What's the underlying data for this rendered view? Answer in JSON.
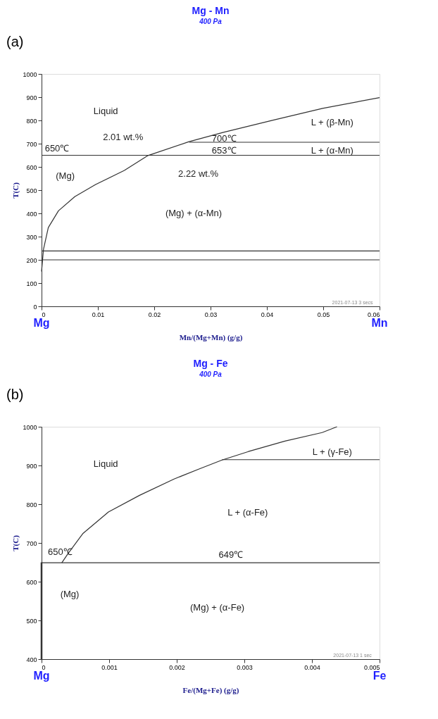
{
  "chart_data": [
    {
      "type": "line",
      "title": "Mg - Mn",
      "subtitle": "400 Pa",
      "xlabel": "Mn/(Mg+Mn) (g/g)",
      "ylabel": "T(C)",
      "x": [
        0.0,
        0.00035,
        0.0012,
        0.003,
        0.0059,
        0.0096,
        0.0147,
        0.0189,
        0.0261,
        0.0323,
        0.0411,
        0.0499,
        0.06
      ],
      "series": [
        {
          "color": "#333333",
          "values": [
            150,
            246,
            339,
            411,
            472,
            524,
            585,
            649,
            708,
            749,
            801,
            852,
            898
          ]
        },
        {
          "color": "#333333",
          "x": [
            0.0262,
            0.06
          ],
          "values": [
            706,
            706
          ]
        }
      ],
      "ref_lines": [
        {
          "axis": "y",
          "value": 650,
          "color": "#333333"
        },
        {
          "axis": "y",
          "value": 238,
          "color": "#333333"
        },
        {
          "axis": "y",
          "value": 200,
          "color": "#333333"
        }
      ],
      "xlim": [
        0,
        0.06
      ],
      "xticks": [
        0,
        0.01,
        0.02,
        0.03,
        0.04,
        0.05,
        0.06
      ],
      "ylim": [
        0,
        1000
      ],
      "yticks": [
        0,
        100,
        200,
        300,
        400,
        500,
        600,
        700,
        800,
        900,
        1000
      ],
      "grid": false,
      "legend": false,
      "annotations": [
        "(a)",
        "Mg",
        "Mn",
        "Liquid",
        "L + (β-Mn)",
        "700℃",
        "653℃",
        "L + (α-Mn)",
        {
          "text": "650℃",
          "x": 0,
          "y": 650
        },
        {
          "text": "2.01 wt.%",
          "x": 0.0201,
          "y": 650
        },
        {
          "text": "2.22 wt.%",
          "x": 0.0222,
          "y": 650
        },
        "(Mg)",
        "(Mg) + (α-Mn)",
        "2021-07-13  3 secs"
      ]
    },
    {
      "type": "line",
      "title": "Mg - Fe",
      "subtitle": "400 Pa",
      "xlabel": "Fe/(Mg+Fe) (g/g)",
      "ylabel": "T(C)",
      "x": [
        0.0003,
        0.00039,
        0.00061,
        0.00099,
        0.00145,
        0.00196,
        0.00233,
        0.00267,
        0.00306,
        0.0036,
        0.00415,
        0.00437
      ],
      "series": [
        {
          "color": "#333333",
          "values": [
            649,
            672,
            724,
            780,
            823,
            865,
            891,
            914,
            936,
            963,
            985,
            1000
          ]
        },
        {
          "color": "#333333",
          "x": [
            0.00267,
            0.005
          ],
          "values": [
            915,
            915
          ]
        },
        {
          "color": "#333333",
          "x": [
            0,
            0
          ],
          "values": [
            400,
            650
          ]
        }
      ],
      "ref_lines": [
        {
          "axis": "y",
          "value": 649,
          "color": "#333333"
        }
      ],
      "xlim": [
        0,
        0.005
      ],
      "xticks": [
        0,
        0.001,
        0.002,
        0.003,
        0.004,
        0.005
      ],
      "ylim": [
        400,
        1000
      ],
      "yticks": [
        400,
        500,
        600,
        700,
        800,
        900,
        1000
      ],
      "grid": false,
      "legend": false,
      "annotations": [
        "(b)",
        "Mg",
        "Fe",
        "Liquid",
        "L + (γ-Fe)",
        "L + (α-Fe)",
        "650℃",
        "649℃",
        {
          "text": "(Mg)",
          "x": 0,
          "y": 567
        },
        "(Mg) + (α-Fe)",
        "2021-07-13  1 sec"
      ]
    }
  ]
}
